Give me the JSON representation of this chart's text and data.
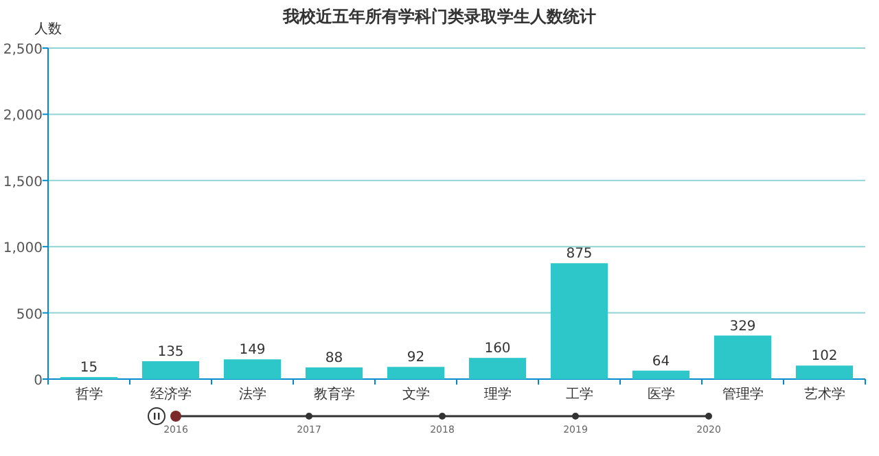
{
  "chart_data": {
    "type": "bar",
    "title": "我校近五年所有学科门类录取学生人数统计",
    "ylabel": "人数",
    "categories": [
      "哲学",
      "经济学",
      "法学",
      "教育学",
      "文学",
      "理学",
      "工学",
      "医学",
      "管理学",
      "艺术学"
    ],
    "values": [
      15,
      135,
      149,
      88,
      92,
      160,
      875,
      64,
      329,
      102
    ],
    "color": "#2ec7c9",
    "data_labels": true,
    "grid": "y",
    "ylim": [
      0,
      2500
    ],
    "yticks": [
      0,
      {
        "value": 500,
        "label": "500"
      },
      {
        "value": 1000,
        "label": "1,000"
      },
      {
        "value": 1500,
        "label": "1,500"
      },
      {
        "value": 2000,
        "label": "2,000"
      },
      {
        "value": 2500,
        "label": "2,500"
      }
    ],
    "annotations": [
      "2016",
      "2017",
      "2018",
      "2019",
      "2020"
    ]
  }
}
